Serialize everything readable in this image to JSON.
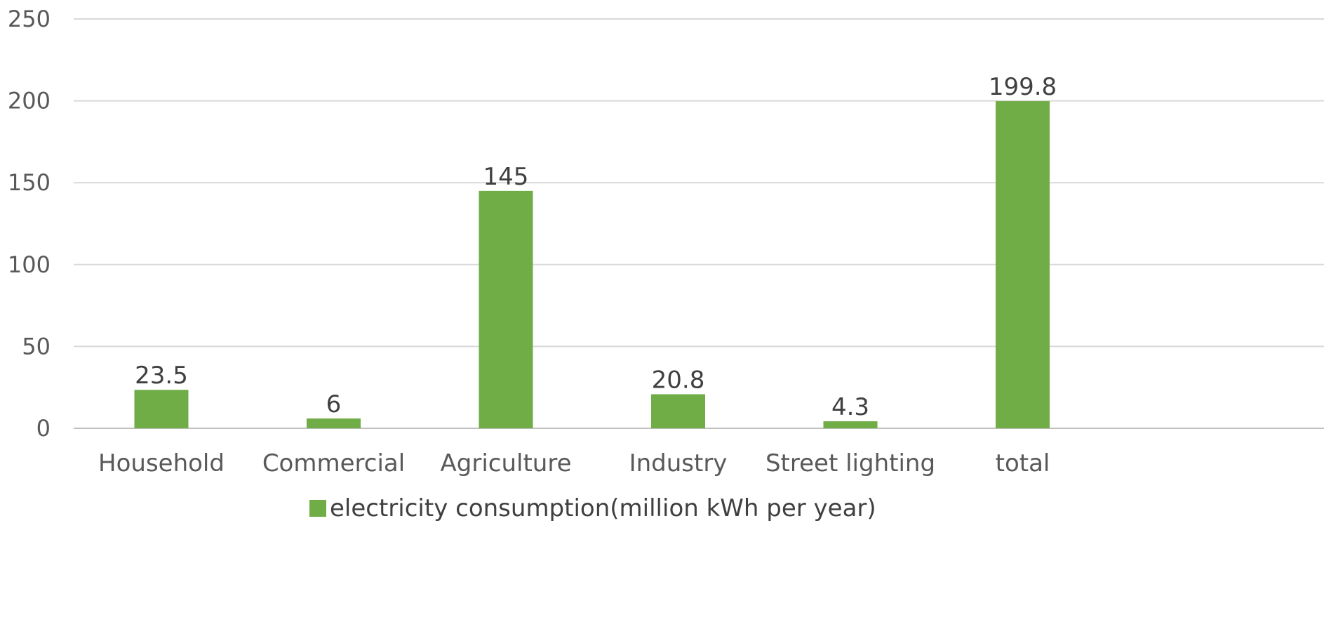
{
  "chart_data": {
    "type": "bar",
    "categories": [
      "Household",
      "Commercial",
      "Agriculture",
      "Industry",
      "Street lighting",
      "total"
    ],
    "series": [
      {
        "name": "electricity consumption(million kWh per year)",
        "values": [
          23.5,
          6,
          145,
          20.8,
          4.3,
          199.8
        ],
        "data_labels": [
          "23.5",
          "6",
          "145",
          "20.8",
          "4.3",
          "199.8"
        ]
      }
    ],
    "yticks": [
      0,
      50,
      100,
      150,
      200,
      250
    ],
    "ylim": [
      0,
      250
    ],
    "grid": true,
    "legend_position": "bottom",
    "colors": {
      "bar": "#70ad47"
    }
  }
}
